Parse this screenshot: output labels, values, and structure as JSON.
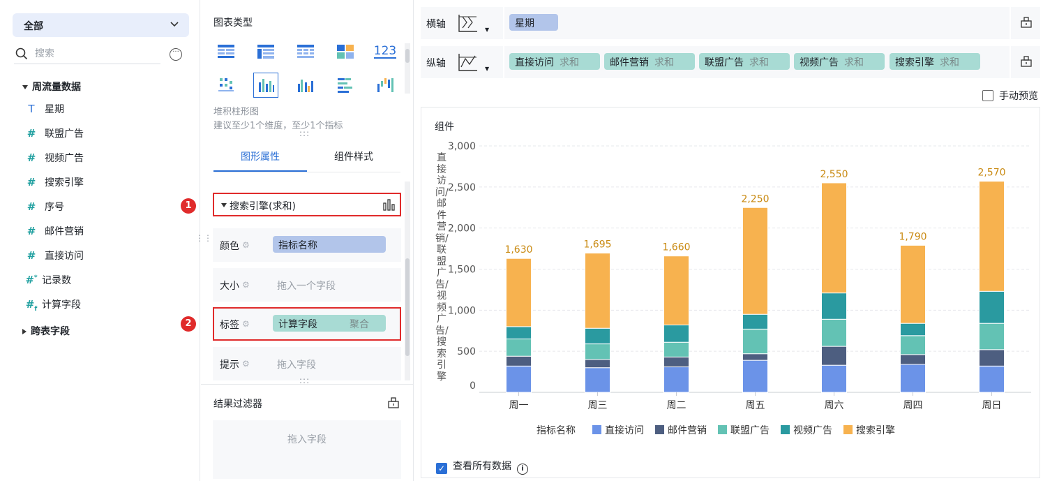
{
  "left": {
    "scope": "全部",
    "search_placeholder": "搜索",
    "group_main": "周流量数据",
    "fields": [
      {
        "icon": "T",
        "label": "星期"
      },
      {
        "icon": "#",
        "label": "联盟广告"
      },
      {
        "icon": "#",
        "label": "视频广告"
      },
      {
        "icon": "#",
        "label": "搜索引擎"
      },
      {
        "icon": "#",
        "label": "序号"
      },
      {
        "icon": "#",
        "label": "邮件营销"
      },
      {
        "icon": "#",
        "label": "直接访问"
      },
      {
        "icon": "#*",
        "label": "记录数"
      },
      {
        "icon": "#fx",
        "label": "计算字段"
      }
    ],
    "group_cross": "跨表字段"
  },
  "mid": {
    "chart_type_title": "图表类型",
    "chart_name": "堆积柱形图",
    "chart_hint": "建议至少1个维度，至少1个指标",
    "tabs": [
      "图形属性",
      "组件样式"
    ],
    "series": "搜索引擎(求和)",
    "attrs": {
      "color_key": "颜色",
      "color_val": "指标名称",
      "size_key": "大小",
      "size_ph": "拖入一个字段",
      "label_key": "标签",
      "label_val": "计算字段",
      "label_agg": "聚合",
      "tip_key": "提示",
      "tip_ph": "拖入字段"
    },
    "badges": [
      "1",
      "2"
    ],
    "filter_title": "结果过滤器",
    "filter_ph": "拖入字段"
  },
  "axes": {
    "x_name": "横轴",
    "x_field": "星期",
    "y_name": "纵轴",
    "agg": "求和",
    "y_fields": [
      "直接访问",
      "邮件营销",
      "联盟广告",
      "视频广告",
      "搜索引擎"
    ]
  },
  "manual_preview": "手动预览",
  "card_title": "组件",
  "see_all": "查看所有数据",
  "colors": {
    "accent": "#2a6fd6",
    "pill_blue": "#b2c5ea",
    "pill_teal": "#a8dbd4",
    "highlight": "#e02b2b",
    "label_text": "#c98a12"
  },
  "chart_data": {
    "type": "bar",
    "stacked": true,
    "categories": [
      "周一",
      "周三",
      "周二",
      "周五",
      "周六",
      "周四",
      "周日"
    ],
    "ylabel": "直接访问/邮件营销/联盟广告/视频广告/搜索引擎",
    "ylim": [
      0,
      3000
    ],
    "yticks": [
      "0",
      "500",
      "1,000",
      "1,500",
      "2,000",
      "2,500",
      "3,000"
    ],
    "legend_title": "指标名称",
    "legend_position": "bottom",
    "grid": true,
    "series": [
      {
        "name": "直接访问",
        "color": "#6b93e8",
        "values": [
          320,
          300,
          310,
          390,
          330,
          340,
          320
        ]
      },
      {
        "name": "邮件营销",
        "color": "#4d5e80",
        "values": [
          120,
          100,
          120,
          80,
          230,
          120,
          200
        ]
      },
      {
        "name": "联盟广告",
        "color": "#63c2b4",
        "values": [
          210,
          190,
          180,
          300,
          330,
          230,
          320
        ]
      },
      {
        "name": "视频广告",
        "color": "#2a9aa0",
        "values": [
          150,
          190,
          210,
          180,
          320,
          150,
          390
        ]
      },
      {
        "name": "搜索引擎",
        "color": "#f7b24f",
        "values": [
          830,
          915,
          840,
          1300,
          1340,
          950,
          1340
        ]
      }
    ],
    "totals": [
      "1,630",
      "1,695",
      "1,660",
      "2,250",
      "2,550",
      "1,790",
      "2,570"
    ]
  }
}
